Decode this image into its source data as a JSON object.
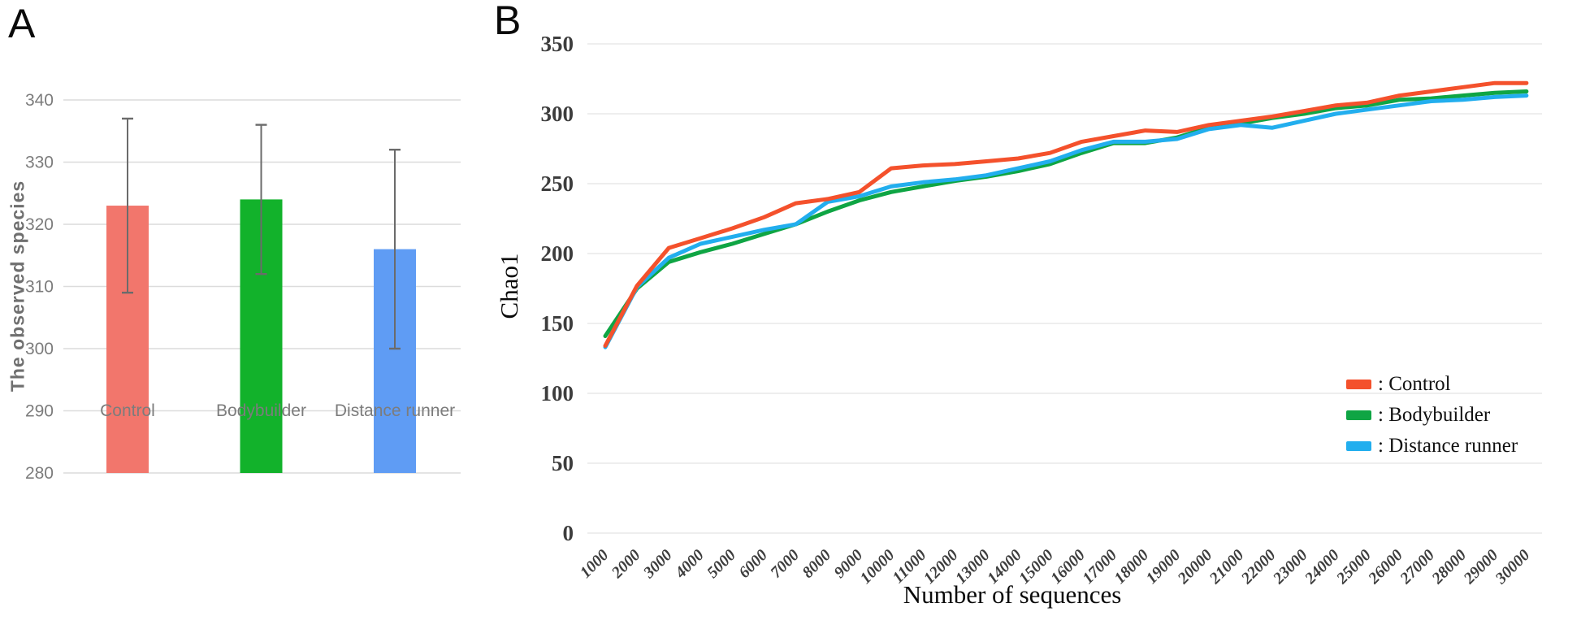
{
  "figure": {
    "panel_a_label": "A",
    "panel_b_label": "B"
  },
  "chart_data": [
    {
      "panel": "A",
      "type": "bar",
      "title": "",
      "xlabel": "",
      "ylabel": "The observed species",
      "ylim": [
        280,
        340
      ],
      "yticks": [
        280,
        290,
        300,
        310,
        320,
        330,
        340
      ],
      "grid": true,
      "categories": [
        "Control",
        "Bodybuilder",
        "Distance runner"
      ],
      "values": [
        323,
        324,
        316
      ],
      "error_low": [
        309,
        312,
        300
      ],
      "error_high": [
        337,
        336,
        332
      ],
      "bar_colors": [
        "#f2766c",
        "#12b22b",
        "#5f9cf4"
      ],
      "error_bar_color": "#6b6b6b"
    },
    {
      "panel": "B",
      "type": "line",
      "title": "",
      "xlabel": "Number of sequences",
      "ylabel": "Chao1",
      "ylim": [
        0,
        350
      ],
      "yticks": [
        0,
        50,
        100,
        150,
        200,
        250,
        300,
        350
      ],
      "grid": true,
      "legend_position": "right-middle",
      "x": [
        1000,
        2000,
        3000,
        4000,
        5000,
        6000,
        7000,
        8000,
        9000,
        10000,
        11000,
        12000,
        13000,
        14000,
        15000,
        16000,
        17000,
        18000,
        19000,
        20000,
        21000,
        22000,
        23000,
        24000,
        25000,
        26000,
        27000,
        28000,
        29000,
        30000
      ],
      "series": [
        {
          "name": "Control",
          "color": "#f4512c",
          "values": [
            134,
            177,
            204,
            211,
            218,
            226,
            236,
            239,
            244,
            261,
            263,
            264,
            266,
            268,
            272,
            280,
            284,
            288,
            287,
            292,
            295,
            298,
            302,
            306,
            308,
            313,
            316,
            319,
            322,
            322
          ]
        },
        {
          "name": "Bodybuilder",
          "color": "#0fa544",
          "values": [
            141,
            175,
            194,
            201,
            207,
            214,
            221,
            230,
            238,
            244,
            248,
            252,
            255,
            259,
            264,
            272,
            279,
            279,
            283,
            290,
            293,
            297,
            300,
            304,
            306,
            310,
            311,
            313,
            315,
            316
          ]
        },
        {
          "name": "Distance runner",
          "color": "#22aeee",
          "values": [
            133,
            176,
            197,
            207,
            212,
            217,
            221,
            237,
            241,
            248,
            251,
            253,
            256,
            261,
            266,
            274,
            280,
            280,
            282,
            289,
            292,
            290,
            295,
            300,
            303,
            306,
            309,
            310,
            312,
            313
          ]
        }
      ],
      "legend": {
        "items": [
          ": Control",
          ": Bodybuilder",
          ": Distance runner"
        ]
      }
    }
  ]
}
